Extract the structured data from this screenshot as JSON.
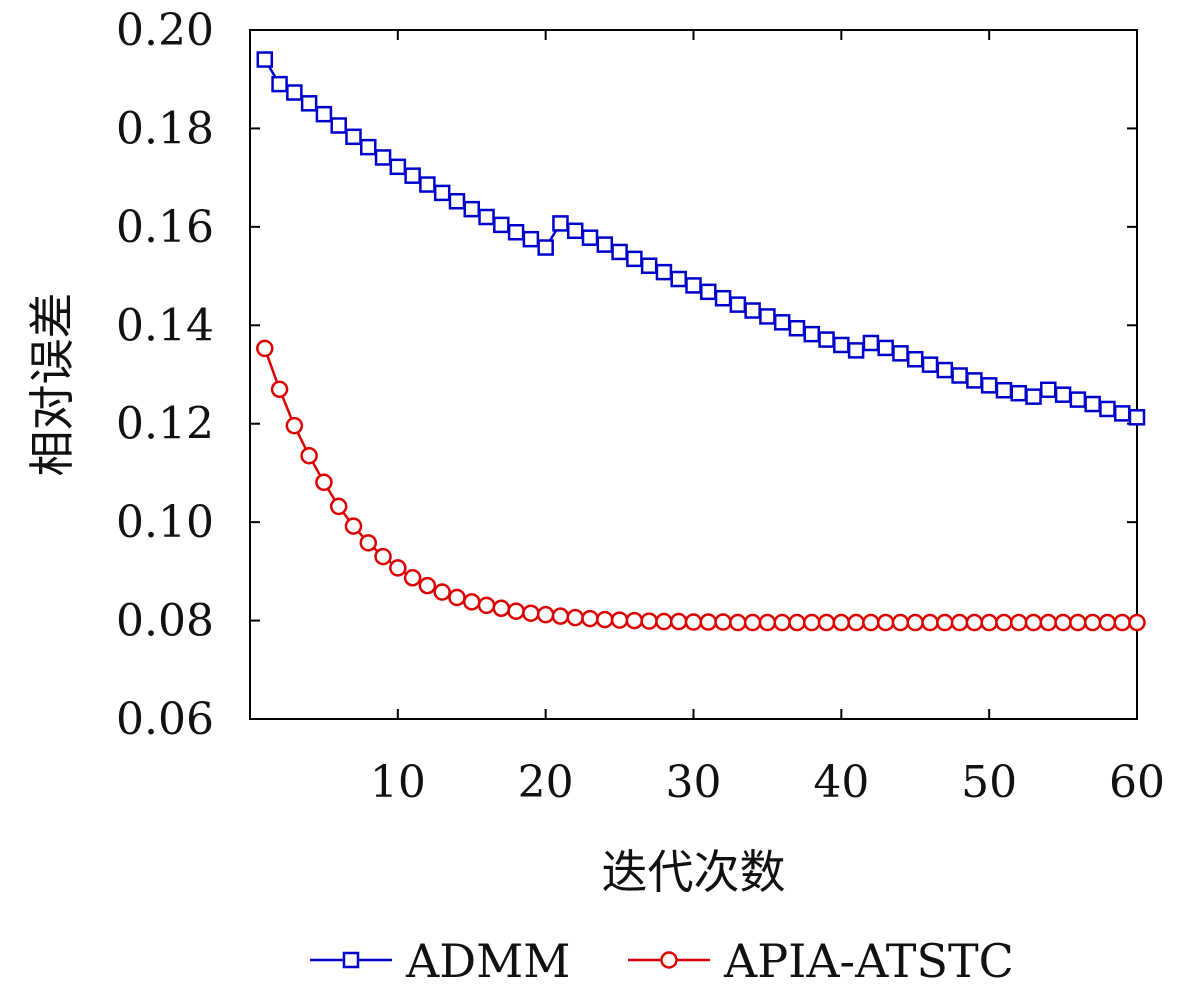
{
  "chart_data": {
    "type": "line",
    "xlabel": "迭代次数",
    "ylabel": "相对误差",
    "xlim": [
      0,
      60
    ],
    "ylim": [
      0.06,
      0.2
    ],
    "xticks": [
      10,
      20,
      30,
      40,
      50,
      60
    ],
    "yticks": [
      0.06,
      0.08,
      0.1,
      0.12,
      0.14,
      0.16,
      0.18,
      0.2
    ],
    "ytick_labels": [
      "0.06",
      "0.08",
      "0.10",
      "0.12",
      "0.14",
      "0.16",
      "0.18",
      "0.20"
    ],
    "xtick_labels": [
      "10",
      "20",
      "30",
      "40",
      "50",
      "60"
    ],
    "legend_position": "bottom",
    "grid": false,
    "x": [
      1,
      2,
      3,
      4,
      5,
      6,
      7,
      8,
      9,
      10,
      11,
      12,
      13,
      14,
      15,
      16,
      17,
      18,
      19,
      20,
      21,
      22,
      23,
      24,
      25,
      26,
      27,
      28,
      29,
      30,
      31,
      32,
      33,
      34,
      35,
      36,
      37,
      38,
      39,
      40,
      41,
      42,
      43,
      44,
      45,
      46,
      47,
      48,
      49,
      50,
      51,
      52,
      53,
      54,
      55,
      56,
      57,
      58,
      59,
      60
    ],
    "series": [
      {
        "name": "ADMM",
        "color": "#0000cc",
        "marker": "square",
        "values": [
          0.194,
          0.189,
          0.1873,
          0.1851,
          0.1829,
          0.1806,
          0.1783,
          0.1762,
          0.1741,
          0.1722,
          0.1704,
          0.1686,
          0.1669,
          0.1652,
          0.1636,
          0.162,
          0.1604,
          0.1589,
          0.1575,
          0.1558,
          0.1607,
          0.1592,
          0.1578,
          0.1564,
          0.1549,
          0.1535,
          0.1521,
          0.1508,
          0.1494,
          0.1481,
          0.1468,
          0.1455,
          0.1442,
          0.143,
          0.1418,
          0.1406,
          0.1394,
          0.1382,
          0.1371,
          0.136,
          0.1349,
          0.1364,
          0.1354,
          0.1343,
          0.1331,
          0.132,
          0.1309,
          0.1298,
          0.1288,
          0.1278,
          0.1268,
          0.1262,
          0.1255,
          0.1269,
          0.1259,
          0.1249,
          0.124,
          0.123,
          0.1221,
          0.1213
        ]
      },
      {
        "name": "APIA-ATSTC",
        "color": "#dd0000",
        "marker": "circle",
        "values": [
          0.1353,
          0.127,
          0.1196,
          0.1135,
          0.1081,
          0.1032,
          0.0992,
          0.0958,
          0.093,
          0.0907,
          0.0887,
          0.0871,
          0.0858,
          0.0847,
          0.0838,
          0.0831,
          0.0825,
          0.0819,
          0.0815,
          0.0812,
          0.0809,
          0.0806,
          0.0804,
          0.0802,
          0.0801,
          0.08,
          0.0799,
          0.0798,
          0.0798,
          0.0797,
          0.0797,
          0.0797,
          0.0796,
          0.0796,
          0.0796,
          0.0796,
          0.0796,
          0.0796,
          0.0796,
          0.0796,
          0.0796,
          0.0796,
          0.0796,
          0.0796,
          0.0796,
          0.0796,
          0.0796,
          0.0796,
          0.0796,
          0.0796,
          0.0796,
          0.0796,
          0.0796,
          0.0796,
          0.0796,
          0.0796,
          0.0796,
          0.0796,
          0.0796,
          0.0796
        ]
      }
    ]
  }
}
